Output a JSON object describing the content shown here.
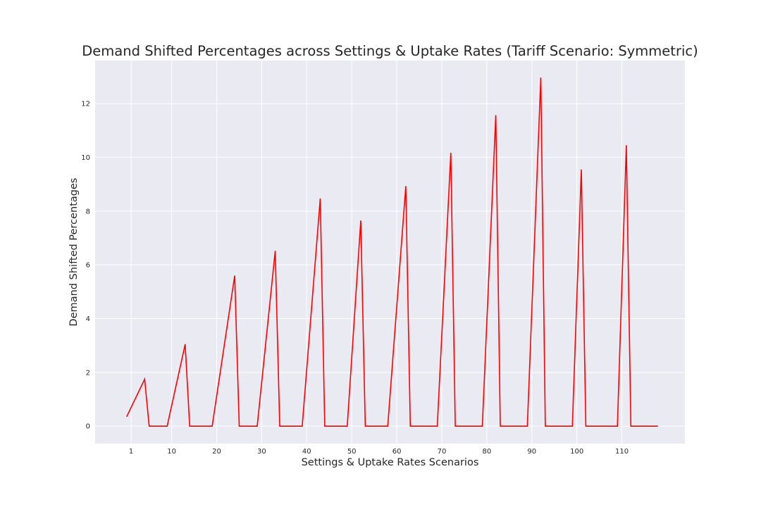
{
  "chart_data": {
    "type": "line",
    "title": "Demand Shifted Percentages across Settings & Uptake Rates (Tariff Scenario: Symmetric)",
    "xlabel": "Settings & Uptake Rates Scenarios",
    "ylabel": "Demand Shifted Percentages",
    "xlim": [
      -7,
      124
    ],
    "ylim": [
      -0.65,
      13.6
    ],
    "xticks": [
      1,
      10,
      20,
      30,
      40,
      50,
      60,
      70,
      80,
      90,
      100,
      110
    ],
    "yticks": [
      0,
      2,
      4,
      6,
      8,
      10,
      12
    ],
    "grid": true,
    "series": [
      {
        "color": "#ff0000",
        "x": [
          0,
          4,
          5,
          9,
          13,
          14,
          19,
          24,
          25,
          29,
          33,
          34,
          39,
          43,
          44,
          49,
          52,
          53,
          58,
          62,
          63,
          69,
          72,
          73,
          79,
          82,
          83,
          89,
          92,
          93,
          99,
          101,
          102,
          109,
          111,
          112,
          118
        ],
        "y": [
          0.35,
          1.75,
          0,
          0,
          3.05,
          0,
          0,
          5.6,
          0,
          0,
          6.52,
          0,
          0,
          8.47,
          0,
          0,
          7.65,
          0,
          0,
          8.93,
          0,
          0,
          10.17,
          0,
          0,
          11.57,
          0,
          0,
          12.97,
          0,
          0,
          9.55,
          0,
          0,
          10.45,
          0,
          0
        ]
      }
    ]
  }
}
